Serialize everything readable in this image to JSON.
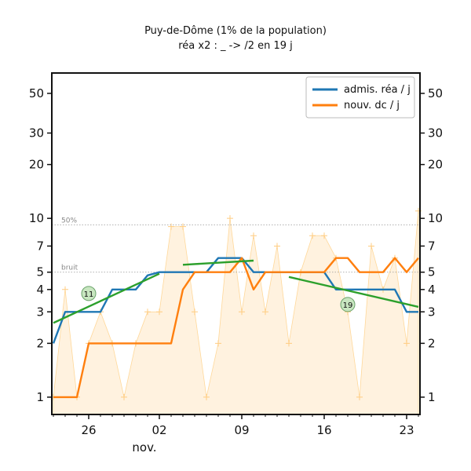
{
  "chart_data": {
    "type": "line",
    "title": "Puy-de-Dôme (1% de la population)",
    "subtitle": "réa x2 : _ -> /2 en 19 j",
    "yscale": "log",
    "ylim": [
      0.8,
      65
    ],
    "y_ticks": [
      1,
      2,
      3,
      4,
      5,
      7,
      10,
      20,
      30,
      50
    ],
    "x_range": [
      0,
      31
    ],
    "x_ticks": [
      {
        "x": 3,
        "label": "26"
      },
      {
        "x": 9,
        "label": "02"
      },
      {
        "x": 16,
        "label": "09"
      },
      {
        "x": 23,
        "label": "16"
      },
      {
        "x": 30,
        "label": "23"
      }
    ],
    "x_month_label": "nov.",
    "reference_lines": [
      {
        "label": "50%",
        "value": 9.2
      },
      {
        "label": "bruit",
        "value": 5.0
      }
    ],
    "legend": [
      {
        "label": "admis. réa / j",
        "color": "#1f77b4"
      },
      {
        "label": "nouv. dc / j",
        "color": "#ff7f0e"
      }
    ],
    "series": [
      {
        "name": "admis. réa / j",
        "color": "#1f77b4",
        "x": [
          0,
          1,
          2,
          3,
          4,
          5,
          6,
          7,
          8,
          9,
          10,
          11,
          12,
          13,
          14,
          15,
          16,
          17,
          18,
          19,
          20,
          21,
          22,
          23,
          24,
          25,
          26,
          27,
          28,
          29,
          30,
          31
        ],
        "values": [
          2.0,
          3.0,
          3.0,
          3.0,
          3.0,
          4.0,
          4.0,
          4.0,
          4.8,
          5.0,
          5.0,
          5.0,
          5.0,
          5.0,
          6.0,
          6.0,
          6.0,
          5.0,
          5.0,
          5.0,
          5.0,
          5.0,
          5.0,
          5.0,
          4.0,
          4.0,
          4.0,
          4.0,
          4.0,
          4.0,
          3.0,
          3.0
        ]
      },
      {
        "name": "nouv. dc / j",
        "color": "#ff7f0e",
        "x": [
          0,
          1,
          2,
          3,
          4,
          5,
          6,
          7,
          8,
          9,
          10,
          11,
          12,
          13,
          14,
          15,
          16,
          17,
          18,
          19,
          20,
          21,
          22,
          23,
          24,
          25,
          26,
          27,
          28,
          29,
          30,
          31
        ],
        "values": [
          1.0,
          1.0,
          1.0,
          2.0,
          2.0,
          2.0,
          2.0,
          2.0,
          2.0,
          2.0,
          2.0,
          4.0,
          5.0,
          5.0,
          5.0,
          5.0,
          6.0,
          4.0,
          5.0,
          5.0,
          5.0,
          5.0,
          5.0,
          5.0,
          6.0,
          6.0,
          5.0,
          5.0,
          5.0,
          6.0,
          5.0,
          6.0
        ]
      }
    ],
    "trend_lines": [
      {
        "color": "#2ca02c",
        "x": [
          0,
          9
        ],
        "values": [
          2.6,
          4.9
        ],
        "badge": "11",
        "badge_x": 3,
        "badge_y": 3.8
      },
      {
        "color": "#2ca02c",
        "x": [
          11,
          17
        ],
        "values": [
          5.5,
          5.8
        ]
      },
      {
        "color": "#2ca02c",
        "x": [
          20,
          31
        ],
        "values": [
          4.7,
          3.2
        ],
        "badge": "19",
        "badge_x": 25,
        "badge_y": 3.3
      }
    ],
    "raw_points": {
      "color": "#ffcc80",
      "x": [
        0,
        1,
        2,
        3,
        4,
        5,
        6,
        7,
        8,
        9,
        10,
        11,
        12,
        13,
        14,
        15,
        16,
        17,
        18,
        19,
        20,
        21,
        22,
        23,
        24,
        25,
        26,
        27,
        28,
        29,
        30,
        31
      ],
      "values": [
        1.0,
        4.0,
        1.0,
        2.0,
        3.0,
        2.0,
        1.0,
        2.0,
        3.0,
        3.0,
        9.0,
        9.0,
        3.0,
        1.0,
        2.0,
        10.0,
        3.0,
        8.0,
        3.0,
        7.0,
        2.0,
        5.0,
        8.0,
        8.0,
        6.0,
        3.0,
        1.0,
        7.0,
        4.0,
        6.0,
        2.0,
        11.0
      ]
    }
  }
}
